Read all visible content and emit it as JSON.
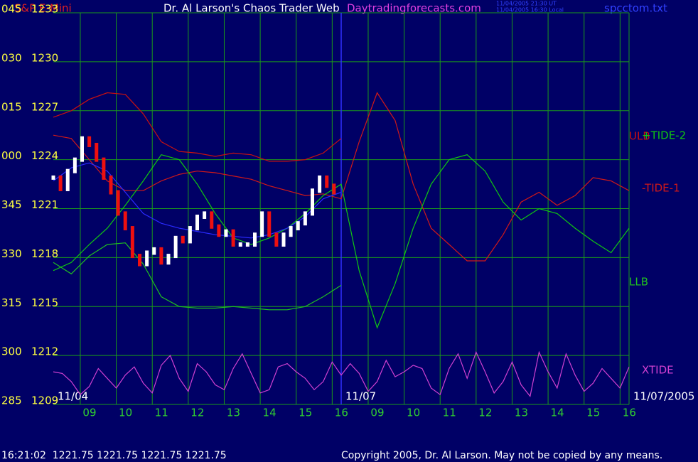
{
  "chart_data": {
    "type": "line",
    "instrument": "S&P E-Mini",
    "title": "Dr. Al Larson's Chaos Trader Web",
    "site": "Daytradingforecasts.com",
    "time_ut": "11/04/2005 21:30 UT",
    "time_local": "11/04/2005 16:30 Local",
    "file": "spcctom.txt",
    "status": "16:21:02  1221.75 1221.75 1221.75 1221.75",
    "copyright": "Copyright 2005, Dr. Al Larson. May not be copied by any means.",
    "ylim": [
      1209,
      1233
    ],
    "yticks": [
      1233,
      1230,
      1227,
      1224,
      1221,
      1218,
      1215,
      1212,
      1209
    ],
    "y_angle_labels": [
      "045",
      "030",
      "015",
      "000",
      "345",
      "330",
      "315",
      "300",
      "285"
    ],
    "xlim": [
      0,
      16
    ],
    "xticks": [
      {
        "value": 0.75,
        "label": "09"
      },
      {
        "value": 1.75,
        "label": "10"
      },
      {
        "value": 2.75,
        "label": "11"
      },
      {
        "value": 3.75,
        "label": "12"
      },
      {
        "value": 4.75,
        "label": "13"
      },
      {
        "value": 5.75,
        "label": "14"
      },
      {
        "value": 6.75,
        "label": "15"
      },
      {
        "value": 7.75,
        "label": "16"
      },
      {
        "value": 8.75,
        "label": "09"
      },
      {
        "value": 9.75,
        "label": "10"
      },
      {
        "value": 10.75,
        "label": "11"
      },
      {
        "value": 11.75,
        "label": "12"
      },
      {
        "value": 12.75,
        "label": "13"
      },
      {
        "value": 13.75,
        "label": "14"
      },
      {
        "value": 14.75,
        "label": "15"
      },
      {
        "value": 15.75,
        "label": "16"
      }
    ],
    "day_labels": [
      {
        "value": 0,
        "label": "11/04"
      },
      {
        "value": 8,
        "label": "11/07"
      },
      {
        "value": 16,
        "label": "11/07/2005"
      }
    ],
    "grid": true,
    "series": [
      {
        "name": "ULB",
        "color": "#c81010",
        "x": [
          0,
          0.5,
          1,
          1.5,
          2,
          2.5,
          3,
          3.5,
          4,
          4.5,
          5,
          5.5,
          6,
          6.5,
          7,
          7.5,
          8
        ],
        "values": [
          1226.6,
          1227.0,
          1227.7,
          1228.1,
          1228.0,
          1226.8,
          1225.1,
          1224.5,
          1224.4,
          1224.2,
          1224.4,
          1224.3,
          1223.9,
          1223.9,
          1224.0,
          1224.4,
          1225.3
        ]
      },
      {
        "name": "-TIDE-1",
        "color": "#d01818",
        "x": [
          0,
          0.5,
          1,
          1.5,
          2,
          2.5,
          3,
          3.5,
          4,
          4.5,
          5,
          5.5,
          6,
          6.5,
          7,
          7.5,
          8,
          8.5,
          9,
          9.5,
          10,
          10.5,
          11,
          11.5,
          12,
          12.5,
          13,
          13.5,
          14,
          14.5,
          15,
          15.5,
          16
        ],
        "values": [
          1225.5,
          1225.3,
          1224.0,
          1222.7,
          1222.1,
          1222.1,
          1222.7,
          1223.1,
          1223.3,
          1223.2,
          1223.0,
          1222.8,
          1222.4,
          1222.1,
          1221.8,
          1221.9,
          1221.6,
          1225.1,
          1228.1,
          1226.4,
          1222.5,
          1219.8,
          1218.8,
          1217.8,
          1217.8,
          1219.4,
          1221.4,
          1222.0,
          1221.2,
          1221.8,
          1222.9,
          1222.7,
          1222.1
        ]
      },
      {
        "name": "+TIDE-2",
        "color": "#10c810",
        "x": [
          0,
          0.5,
          1,
          1.5,
          2,
          2.5,
          3,
          3.5,
          4,
          4.5,
          5,
          5.5,
          6,
          6.5,
          7,
          7.5,
          8,
          8.5,
          9,
          9.5,
          10,
          10.5,
          11,
          11.5,
          12,
          12.5,
          13,
          13.5,
          14,
          14.5,
          15,
          15.5,
          16
        ],
        "values": [
          1217.2,
          1217.7,
          1218.8,
          1219.8,
          1221.2,
          1222.7,
          1224.3,
          1224.0,
          1222.5,
          1220.7,
          1219.2,
          1218.8,
          1219.2,
          1219.8,
          1220.7,
          1221.8,
          1222.5,
          1217.2,
          1213.7,
          1216.4,
          1219.8,
          1222.5,
          1224.0,
          1224.3,
          1223.3,
          1221.4,
          1220.3,
          1221.0,
          1220.7,
          1219.8,
          1219.0,
          1218.3,
          1219.8
        ]
      },
      {
        "name": "LLB",
        "color": "#20c020",
        "x": [
          0,
          0.5,
          1,
          1.5,
          2,
          2.5,
          3,
          3.5,
          4,
          4.5,
          5,
          5.5,
          6,
          6.5,
          7,
          7.5,
          8
        ],
        "values": [
          1217.7,
          1217.0,
          1218.1,
          1218.8,
          1218.9,
          1217.6,
          1215.6,
          1215.0,
          1214.9,
          1214.9,
          1215.0,
          1214.9,
          1214.8,
          1214.8,
          1215.0,
          1215.6,
          1216.3
        ]
      },
      {
        "color": "#2a2aff",
        "x": [
          0,
          0.5,
          1,
          1.5,
          2,
          2.5,
          3,
          3.5,
          4,
          4.5,
          5,
          5.5,
          6,
          6.5,
          7,
          7.5,
          8
        ],
        "values": [
          1222.7,
          1223.5,
          1223.8,
          1223.3,
          1222.0,
          1220.7,
          1220.1,
          1219.8,
          1219.6,
          1219.4,
          1219.3,
          1219.2,
          1219.4,
          1219.8,
          1220.5,
          1221.6,
          1222.0
        ]
      },
      {
        "type": "bars",
        "color": "#ffffff",
        "down_color": "#ee1010",
        "x": [
          0,
          0.2,
          0.4,
          0.6,
          0.8,
          1,
          1.2,
          1.4,
          1.6,
          1.8,
          2,
          2.2,
          2.4,
          2.6,
          2.8,
          3,
          3.2,
          3.4,
          3.6,
          3.8,
          4,
          4.2,
          4.4,
          4.6,
          4.8,
          5,
          5.2,
          5.4,
          5.6,
          5.8,
          6,
          6.2,
          6.4,
          6.6,
          6.8,
          7,
          7.2,
          7.4,
          7.6,
          7.8
        ],
        "values": [
          1222.9,
          1222.2,
          1223.3,
          1224.0,
          1225.3,
          1224.9,
          1224.0,
          1222.9,
          1222.0,
          1220.7,
          1219.8,
          1218.1,
          1217.6,
          1218.3,
          1218.5,
          1217.7,
          1218.1,
          1219.2,
          1219.0,
          1219.8,
          1220.5,
          1220.7,
          1219.9,
          1219.4,
          1219.6,
          1218.8,
          1218.8,
          1218.8,
          1219.4,
          1220.7,
          1219.4,
          1218.8,
          1219.4,
          1219.8,
          1220.1,
          1220.7,
          1222.1,
          1222.9,
          1222.4,
          1222.0
        ]
      },
      {
        "name": "XTIDE",
        "color": "#d040d0",
        "x": [
          0,
          0.25,
          0.5,
          0.75,
          1,
          1.25,
          1.5,
          1.75,
          2,
          2.25,
          2.5,
          2.75,
          3,
          3.25,
          3.5,
          3.75,
          4,
          4.25,
          4.5,
          4.75,
          5,
          5.25,
          5.5,
          5.75,
          6,
          6.25,
          6.5,
          6.75,
          7,
          7.25,
          7.5,
          7.75,
          8,
          8.25,
          8.5,
          8.75,
          9,
          9.25,
          9.5,
          9.75,
          10,
          10.25,
          10.5,
          10.75,
          11,
          11.25,
          11.5,
          11.75,
          12,
          12.25,
          12.5,
          12.75,
          13,
          13.25,
          13.5,
          13.75,
          14,
          14.25,
          14.5,
          14.75,
          15,
          15.25,
          15.5,
          15.75,
          16
        ],
        "values": [
          1211.0,
          1210.9,
          1210.4,
          1209.6,
          1210.1,
          1211.2,
          1210.6,
          1210.0,
          1210.8,
          1211.3,
          1210.3,
          1209.7,
          1211.4,
          1212.0,
          1210.6,
          1209.8,
          1211.5,
          1211.0,
          1210.2,
          1209.9,
          1211.2,
          1212.1,
          1210.9,
          1209.7,
          1209.9,
          1211.3,
          1211.5,
          1211.0,
          1210.6,
          1209.9,
          1210.4,
          1211.6,
          1210.8,
          1211.5,
          1210.9,
          1209.8,
          1210.4,
          1211.7,
          1210.7,
          1211.0,
          1211.4,
          1211.2,
          1210.0,
          1209.6,
          1211.2,
          1212.1,
          1210.6,
          1212.2,
          1211.0,
          1209.7,
          1210.4,
          1211.6,
          1210.2,
          1209.5,
          1212.2,
          1211.0,
          1210.0,
          1212.1,
          1210.8,
          1209.8,
          1210.3,
          1211.2,
          1210.6,
          1210.0,
          1211.3
        ]
      }
    ]
  }
}
